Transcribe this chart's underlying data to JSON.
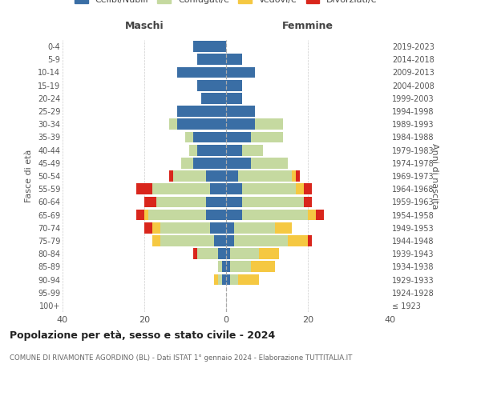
{
  "age_groups": [
    "100+",
    "95-99",
    "90-94",
    "85-89",
    "80-84",
    "75-79",
    "70-74",
    "65-69",
    "60-64",
    "55-59",
    "50-54",
    "45-49",
    "40-44",
    "35-39",
    "30-34",
    "25-29",
    "20-24",
    "15-19",
    "10-14",
    "5-9",
    "0-4"
  ],
  "birth_years": [
    "≤ 1923",
    "1924-1928",
    "1929-1933",
    "1934-1938",
    "1939-1943",
    "1944-1948",
    "1949-1953",
    "1954-1958",
    "1959-1963",
    "1964-1968",
    "1969-1973",
    "1974-1978",
    "1979-1983",
    "1984-1988",
    "1989-1993",
    "1994-1998",
    "1999-2003",
    "2004-2008",
    "2009-2013",
    "2014-2018",
    "2019-2023"
  ],
  "colors": {
    "celibi": "#3a6ea5",
    "coniugati": "#c5d9a0",
    "vedovi": "#f5c842",
    "divorziati": "#d9261c"
  },
  "maschi": {
    "celibi": [
      0,
      0,
      1,
      1,
      2,
      3,
      4,
      5,
      5,
      4,
      5,
      8,
      7,
      8,
      12,
      12,
      6,
      7,
      12,
      7,
      8
    ],
    "coniugati": [
      0,
      0,
      1,
      1,
      5,
      13,
      12,
      14,
      12,
      14,
      8,
      3,
      2,
      2,
      2,
      0,
      0,
      0,
      0,
      0,
      0
    ],
    "vedovi": [
      0,
      0,
      1,
      0,
      0,
      2,
      2,
      1,
      0,
      0,
      0,
      0,
      0,
      0,
      0,
      0,
      0,
      0,
      0,
      0,
      0
    ],
    "divorziati": [
      0,
      0,
      0,
      0,
      1,
      0,
      2,
      2,
      3,
      4,
      1,
      0,
      0,
      0,
      0,
      0,
      0,
      0,
      0,
      0,
      0
    ]
  },
  "femmine": {
    "celibi": [
      0,
      0,
      1,
      1,
      1,
      2,
      2,
      4,
      4,
      4,
      3,
      6,
      4,
      6,
      7,
      7,
      4,
      4,
      7,
      4,
      0
    ],
    "coniugati": [
      0,
      0,
      2,
      5,
      7,
      13,
      10,
      16,
      15,
      13,
      13,
      9,
      5,
      8,
      7,
      0,
      0,
      0,
      0,
      0,
      0
    ],
    "vedovi": [
      0,
      0,
      5,
      6,
      5,
      5,
      4,
      2,
      0,
      2,
      1,
      0,
      0,
      0,
      0,
      0,
      0,
      0,
      0,
      0,
      0
    ],
    "divorziati": [
      0,
      0,
      0,
      0,
      0,
      1,
      0,
      2,
      2,
      2,
      1,
      0,
      0,
      0,
      0,
      0,
      0,
      0,
      0,
      0,
      0
    ]
  },
  "title": "Popolazione per età, sesso e stato civile - 2024",
  "subtitle": "COMUNE DI RIVAMONTE AGORDINO (BL) - Dati ISTAT 1° gennaio 2024 - Elaborazione TUTTITALIA.IT",
  "xlabel_left": "Maschi",
  "xlabel_right": "Femmine",
  "ylabel_left": "Fasce di età",
  "ylabel_right": "Anni di nascita",
  "xlim": 40,
  "background_color": "#ffffff",
  "grid_color": "#cccccc"
}
